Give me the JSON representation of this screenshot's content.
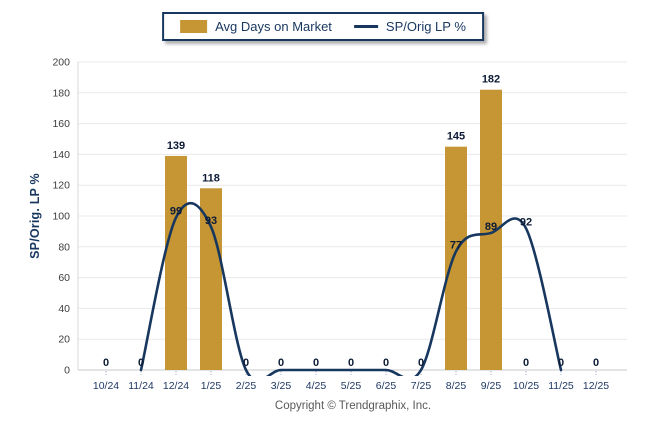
{
  "legend": {
    "bar_label": "Avg Days on Market",
    "line_label": "SP/Orig LP %"
  },
  "footer": {
    "copyright": "Copyright © Trendgraphix, Inc."
  },
  "colors": {
    "bar": "#C59633",
    "line": "#17375E",
    "value_label": "#0D1B36",
    "x_tick_label": "#1F3864",
    "y_tick_label": "#3D3D3D",
    "gridline": "#E9E9E9",
    "axis": "#C8C8C8"
  },
  "chart_data": {
    "type": "bar",
    "subtype": "combo-bar-line",
    "title": "",
    "xlabel": "",
    "ylabel": "SP/Orig. LP %",
    "ylim": [
      0,
      200
    ],
    "ytick_step": 20,
    "grid": true,
    "legend_position": "top",
    "categories": [
      "10/24",
      "11/24",
      "12/24",
      "1/25",
      "2/25",
      "3/25",
      "4/25",
      "5/25",
      "6/25",
      "7/25",
      "8/25",
      "9/25",
      "10/25",
      "11/25",
      "12/25"
    ],
    "series": [
      {
        "name": "Avg Days on Market",
        "type": "bar",
        "values": [
          0,
          0,
          139,
          118,
          0,
          0,
          0,
          0,
          0,
          0,
          145,
          182,
          0,
          0,
          0
        ]
      },
      {
        "name": "SP/Orig LP %",
        "type": "line",
        "smooth": true,
        "values": [
          null,
          0,
          99,
          93,
          0,
          0,
          0,
          0,
          0,
          0,
          77,
          89,
          92,
          0,
          null
        ]
      }
    ]
  }
}
